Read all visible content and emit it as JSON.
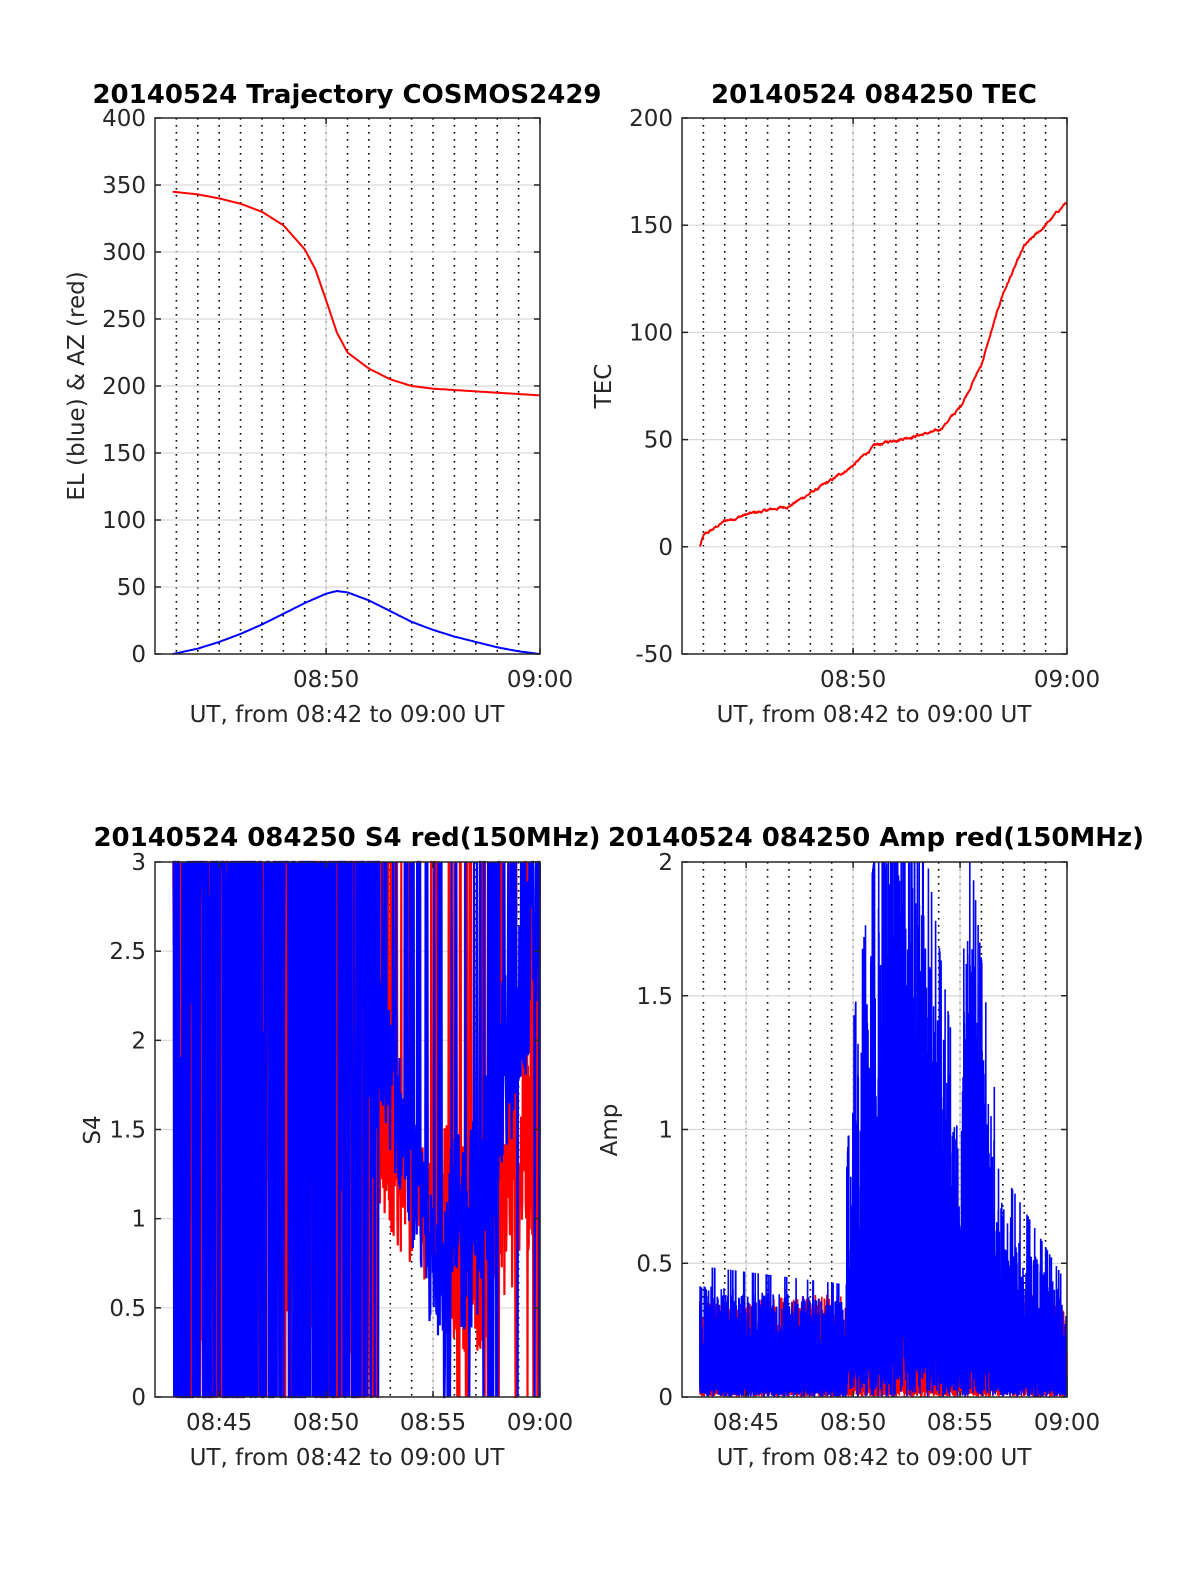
{
  "colors": {
    "red": "#ff0000",
    "blue": "#0000ff",
    "grid": "#d9d9d9",
    "axis": "#262626"
  },
  "chart_data": [
    {
      "id": "trajectory",
      "type": "line",
      "title": "20140524 Trajectory COSMOS2429",
      "xlabel": "UT, from 08:42 to 09:00 UT",
      "ylabel": "EL (blue) & AZ (red)",
      "xlim": [
        "08:42",
        "09:00"
      ],
      "ylim": [
        0,
        400
      ],
      "yticks": [
        0,
        50,
        100,
        150,
        200,
        250,
        300,
        350,
        400
      ],
      "xticks": [
        "08:50",
        "09:00"
      ],
      "grid": true,
      "series": [
        {
          "color": "red",
          "x": [
            "08:42:50",
            "08:44",
            "08:45",
            "08:46",
            "08:47",
            "08:48",
            "08:49",
            "08:49:30",
            "08:50",
            "08:50:30",
            "08:51",
            "08:52",
            "08:53",
            "08:54",
            "08:55",
            "08:56",
            "08:57",
            "08:58",
            "08:59",
            "09:00"
          ],
          "y": [
            345,
            343,
            340,
            336,
            330,
            320,
            302,
            287,
            264,
            240,
            225,
            213,
            205,
            200,
            198,
            197,
            196,
            195,
            194,
            193
          ]
        },
        {
          "color": "blue",
          "x": [
            "08:42:50",
            "08:44",
            "08:45",
            "08:46",
            "08:47",
            "08:48",
            "08:49",
            "08:50",
            "08:50:30",
            "08:51",
            "08:52",
            "08:53",
            "08:54",
            "08:55",
            "08:56",
            "08:57",
            "08:58",
            "08:59",
            "09:00"
          ],
          "y": [
            0,
            4,
            9,
            15,
            22,
            30,
            38,
            45,
            47,
            46,
            40,
            32,
            24,
            18,
            13,
            9,
            5,
            2,
            0
          ]
        }
      ]
    },
    {
      "id": "tec",
      "type": "line",
      "title": "20140524 084250 TEC",
      "xlabel": "UT, from 08:42 to 09:00 UT",
      "ylabel": "TEC",
      "xlim": [
        "08:42",
        "09:00"
      ],
      "ylim": [
        -50,
        200
      ],
      "yticks": [
        -50,
        0,
        50,
        100,
        150,
        200
      ],
      "xticks": [
        "08:50",
        "09:00"
      ],
      "grid": true,
      "series": [
        {
          "color": "red",
          "x": [
            "08:42:50",
            "08:43",
            "08:44",
            "08:45",
            "08:46",
            "08:47",
            "08:48",
            "08:49",
            "08:50",
            "08:51",
            "08:52",
            "08:53",
            "08:54",
            "08:55",
            "08:56",
            "08:57",
            "08:58",
            "08:59",
            "09:00"
          ],
          "y": [
            0,
            5,
            12,
            15,
            17,
            19,
            25,
            31,
            38,
            47,
            50,
            52,
            54,
            65,
            85,
            118,
            140,
            150,
            161
          ]
        }
      ]
    },
    {
      "id": "s4",
      "type": "line",
      "title": "20140524 084250 S4 red(150MHz)",
      "xlabel": "UT, from 08:42 to 09:00 UT",
      "ylabel": "S4",
      "xlim": [
        "08:42",
        "09:00"
      ],
      "ylim": [
        0,
        3
      ],
      "yticks": [
        0,
        0.5,
        1,
        1.5,
        2,
        2.5,
        3
      ],
      "xticks": [
        "08:45",
        "08:50",
        "08:55",
        "09:00"
      ],
      "grid": true,
      "series": [
        {
          "color": "red",
          "description_free": true,
          "x": [
            "08:42:50",
            "08:52",
            "08:55",
            "08:57",
            "09:00"
          ],
          "y": [
            1.5,
            1.4,
            1.0,
            0.8,
            1.5
          ]
        },
        {
          "color": "blue",
          "x": [
            "08:42:50",
            "08:52",
            "08:55",
            "08:57",
            "09:00"
          ],
          "y": [
            2.6,
            2.3,
            0.7,
            1.0,
            2.8
          ]
        }
      ]
    },
    {
      "id": "amp",
      "type": "line",
      "title": "20140524 084250 Amp red(150MHz)",
      "xlabel": "UT, from 08:42 to 09:00 UT",
      "ylabel": "Amp",
      "xlim": [
        "08:42",
        "09:00"
      ],
      "ylim": [
        0,
        2
      ],
      "yticks": [
        0,
        0.5,
        1,
        1.5,
        2
      ],
      "xticks": [
        "08:45",
        "08:50",
        "08:55",
        "09:00"
      ],
      "grid": true,
      "series": [
        {
          "color": "red",
          "x": [
            "08:42:50",
            "08:58",
            "09:00"
          ],
          "y": [
            0.3,
            0.35,
            0.28
          ]
        },
        {
          "color": "blue",
          "x": [
            "08:42:50",
            "08:49:45",
            "08:50",
            "08:52:10",
            "08:55",
            "08:55:20",
            "08:57",
            "09:00"
          ],
          "y": [
            0.35,
            0.3,
            1.0,
            1.97,
            0.8,
            1.55,
            0.6,
            0.3
          ]
        }
      ]
    }
  ]
}
